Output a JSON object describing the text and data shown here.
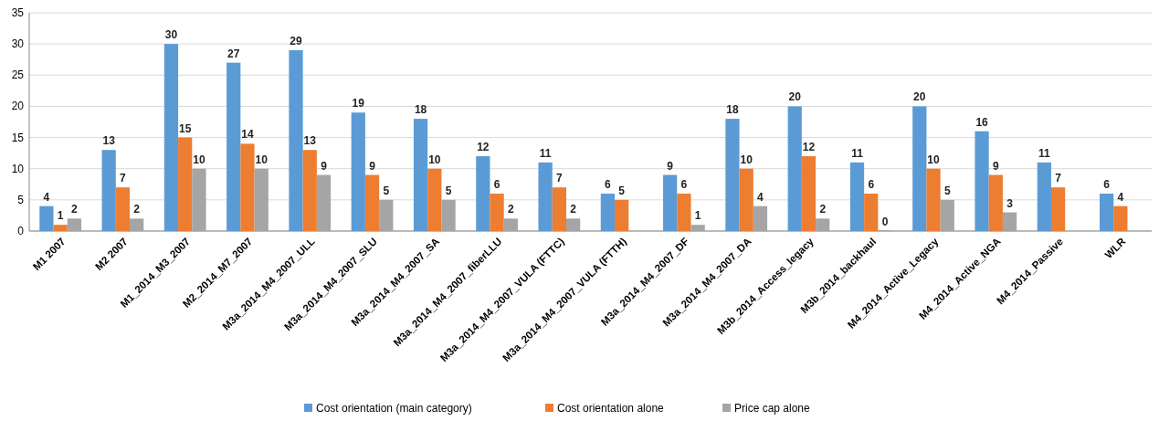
{
  "chart_data": {
    "type": "bar",
    "categories": [
      "M1 2007",
      "M2 2007",
      "M1_2014_M3_2007",
      "M2_2014_M7_2007",
      "M3a_2014_M4_2007_ULL",
      "M3a_2014_M4_2007_SLU",
      "M3a_2014_M4_2007_SA",
      "M3a_2014_M4_2007_fiberLLU",
      "M3a_2014_M4_2007_VULA (FTTC)",
      "M3a_2014_M4_2007_VULA (FTTH)",
      "M3a_2014_M4_2007_DF",
      "M3a_2014_M4_2007_DA",
      "M3b_2014_Access_legacy",
      "M3b_2014_backhaul",
      "M4_2014_Active_Legacy",
      "M4_2014_Active_NGA",
      "M4_2014_Passive",
      "WLR"
    ],
    "series": [
      {
        "name": "Cost orientation (main category)",
        "color": "#5b9bd5",
        "values": [
          4,
          13,
          30,
          27,
          29,
          19,
          18,
          12,
          11,
          6,
          9,
          18,
          20,
          11,
          20,
          16,
          11,
          6
        ]
      },
      {
        "name": "Cost orientation alone",
        "color": "#ed7d31",
        "values": [
          1,
          7,
          15,
          14,
          13,
          9,
          10,
          6,
          7,
          5,
          6,
          10,
          12,
          6,
          10,
          9,
          7,
          4
        ]
      },
      {
        "name": "Price cap alone",
        "color": "#a5a5a5",
        "values": [
          2,
          2,
          10,
          10,
          9,
          5,
          5,
          2,
          2,
          null,
          1,
          4,
          2,
          0,
          5,
          3,
          null,
          null
        ]
      }
    ],
    "ylim": [
      0,
      35
    ],
    "yticks": [
      0,
      5,
      10,
      15,
      20,
      25,
      30,
      35
    ],
    "grid": "y",
    "legend": "bottom",
    "data_labels": true
  }
}
